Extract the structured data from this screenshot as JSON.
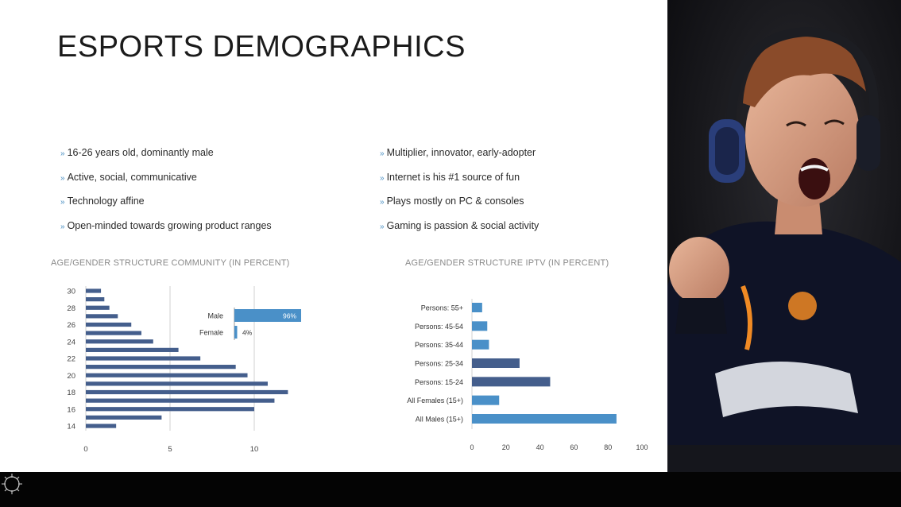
{
  "slide": {
    "title": "ESPORTS DEMOGRAPHICS",
    "bullets_left": [
      "16-26 years old, dominantly male",
      "Active, social, communicative",
      "Technology affine",
      "Open-minded towards growing product ranges"
    ],
    "bullets_right": [
      "Multiplier, innovator, early-adopter",
      "Internet is his #1 source of fun",
      "Plays mostly on PC & consoles",
      "Gaming is passion & social activity"
    ],
    "bullet_marker": "»",
    "photo_icon": "gamer-photo",
    "logo_icon": "logo-icon"
  },
  "colors": {
    "bar_light": "#4a90c8",
    "bar_dark": "#445e8c",
    "bottom_bar": "#040404",
    "axis": "#d0d0d0"
  },
  "chart_data": [
    {
      "type": "bar",
      "orientation": "horizontal",
      "title": "AGE/GENDER STRUCTURE COMMUNITY (IN PERCENT)",
      "categories": [
        14,
        15,
        16,
        17,
        18,
        19,
        20,
        21,
        22,
        23,
        24,
        25,
        26,
        27,
        28,
        29,
        30
      ],
      "tick_labels_y": [
        "30",
        "28",
        "26",
        "24",
        "22",
        "20",
        "18",
        "16",
        "14"
      ],
      "values": [
        1.8,
        4.5,
        10.0,
        11.2,
        12.0,
        10.8,
        9.6,
        8.9,
        6.8,
        5.5,
        4.0,
        3.3,
        2.7,
        1.9,
        1.4,
        1.1,
        0.9
      ],
      "xlim": [
        0,
        12.5
      ],
      "xticks": [
        "0",
        "5",
        "10"
      ],
      "grid": "vertical",
      "inset": {
        "type": "bar",
        "orientation": "horizontal",
        "categories": [
          "Male",
          "Female"
        ],
        "values": [
          96,
          4
        ],
        "data_labels": [
          "96%",
          "4%"
        ]
      }
    },
    {
      "type": "bar",
      "orientation": "horizontal",
      "title": "AGE/GENDER STRUCTURE IPTV (IN PERCENT)",
      "categories": [
        "Persons: 55+",
        "Persons: 45-54",
        "Persons: 35-44",
        "Persons: 25-34",
        "Persons: 15-24",
        "All Females (15+)",
        "All Males (15+)"
      ],
      "values": [
        6,
        9,
        10,
        28,
        46,
        16,
        85
      ],
      "series_color_key": [
        "light",
        "light",
        "light",
        "dark",
        "dark",
        "light",
        "light"
      ],
      "xlim": [
        0,
        100
      ],
      "xticks": [
        "0",
        "20",
        "40",
        "60",
        "80",
        "100"
      ],
      "grid": "none"
    }
  ]
}
